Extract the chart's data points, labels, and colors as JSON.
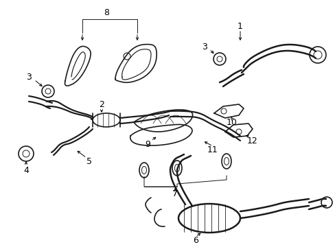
{
  "bg_color": "#ffffff",
  "line_color": "#1a1a1a",
  "fig_width": 4.89,
  "fig_height": 3.6,
  "dpi": 100,
  "components": {
    "label_fontsize": 9,
    "leader_lw": 0.7,
    "part_lw": 1.2
  }
}
